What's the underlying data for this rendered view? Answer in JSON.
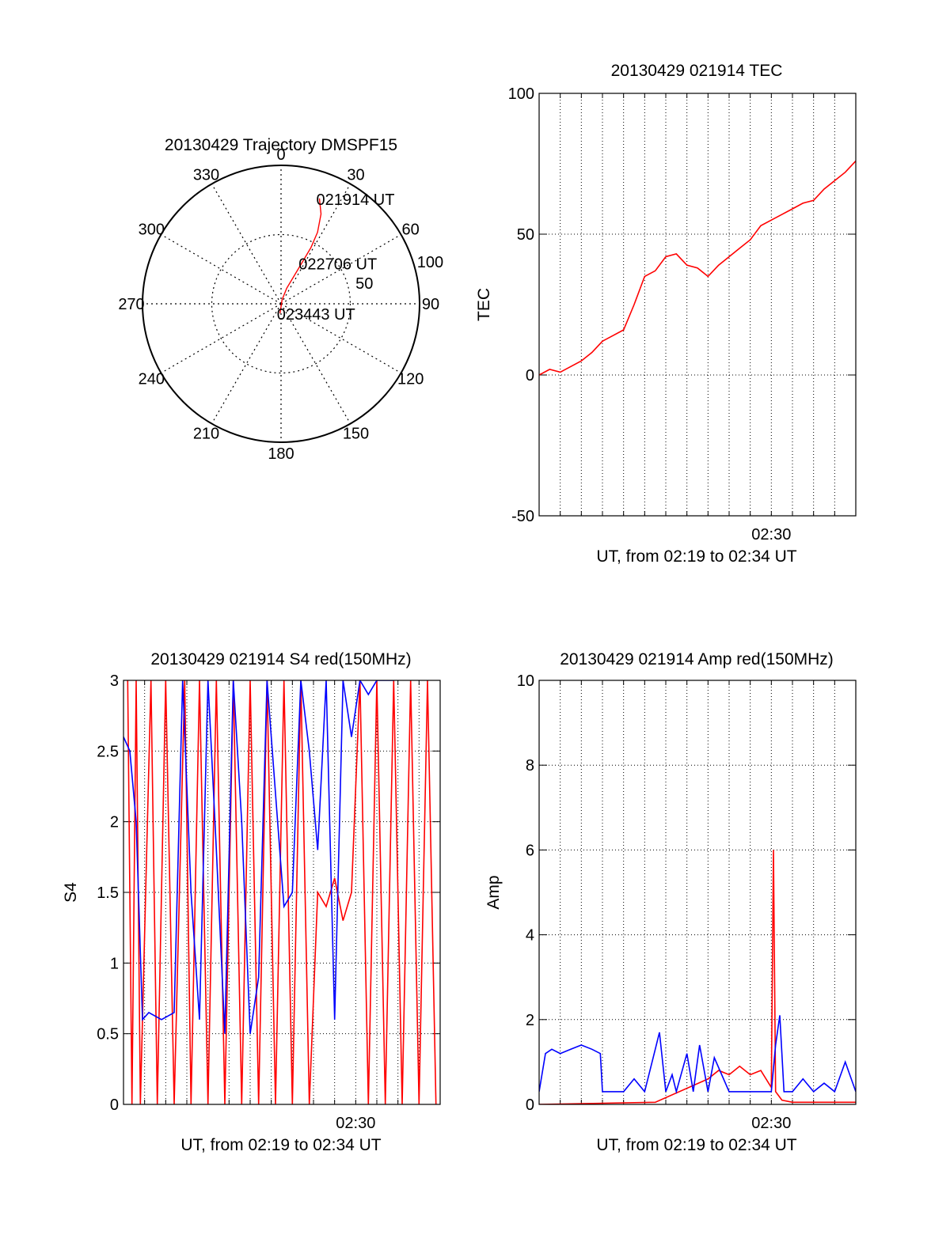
{
  "colors": {
    "red": "#ff0000",
    "blue": "#0000ff",
    "axis": "#000000",
    "grid": "#000000"
  },
  "chart_data": [
    {
      "id": "trajectory",
      "type": "polar",
      "title": "20130429 Trajectory DMSPF15",
      "angle_labels": [
        "0",
        "30",
        "60",
        "90",
        "120",
        "150",
        "180",
        "210",
        "240",
        "270",
        "300",
        "330"
      ],
      "radial_labels": [
        "50",
        "100"
      ],
      "rlim": [
        0,
        100
      ],
      "grid": true,
      "series": [
        {
          "color": "red",
          "points": [
            [
              20,
              81
            ],
            [
              24,
              71
            ],
            [
              27,
              58
            ],
            [
              28,
              46
            ],
            [
              27,
              33
            ],
            [
              25,
              22
            ],
            [
              20,
              12
            ],
            [
              14,
              3
            ],
            [
              6,
              -7
            ]
          ]
        }
      ],
      "annotations": [
        {
          "text": "021914 UT",
          "at_point": 0
        },
        {
          "text": "022706 UT",
          "at_point": 4
        },
        {
          "text": "023443 UT",
          "at_point": 8
        }
      ]
    },
    {
      "id": "tec",
      "type": "line",
      "title": "20130429 021914 TEC",
      "ylabel": "TEC",
      "xlabel": "UT, from 02:19 to 02:34 UT",
      "xtick_labels": [
        {
          "x": 11,
          "label": "02:30"
        }
      ],
      "xlim": [
        0,
        15
      ],
      "ylim": [
        -50,
        100
      ],
      "yticks": [
        -50,
        0,
        50,
        100
      ],
      "grid": true,
      "series": [
        {
          "color": "red",
          "x": [
            0,
            0.5,
            1,
            1.5,
            2,
            2.5,
            3,
            3.5,
            4,
            4.5,
            5,
            5.5,
            6,
            6.5,
            7,
            7.5,
            8,
            8.5,
            9,
            9.5,
            10,
            10.5,
            11,
            11.5,
            12,
            12.5,
            13,
            13.5,
            14,
            14.5,
            15
          ],
          "y": [
            0,
            2,
            1,
            3,
            5,
            8,
            12,
            14,
            16,
            25,
            35,
            37,
            42,
            43,
            39,
            38,
            35,
            39,
            42,
            45,
            48,
            53,
            55,
            57,
            59,
            61,
            62,
            66,
            69,
            72,
            76
          ]
        }
      ]
    },
    {
      "id": "s4",
      "type": "line",
      "title": "20130429 021914 S4 red(150MHz)",
      "ylabel": "S4",
      "xlabel": "UT, from 02:19 to 02:34 UT",
      "xtick_labels": [
        {
          "x": 11,
          "label": "02:30"
        }
      ],
      "xlim": [
        0,
        15
      ],
      "ylim": [
        0,
        3
      ],
      "yticks": [
        0,
        0.5,
        1,
        1.5,
        2,
        2.5,
        3
      ],
      "ytick_labels": [
        "0",
        "0.5",
        "1",
        "1.5",
        "2",
        "2.5",
        "3"
      ],
      "grid": true,
      "series": [
        {
          "color": "red",
          "x": [
            0.2,
            0.4,
            0.6,
            0.8,
            1.3,
            1.6,
            2.0,
            2.4,
            2.9,
            3.2,
            3.6,
            4.0,
            4.4,
            4.8,
            5.2,
            5.6,
            6.0,
            6.4,
            6.8,
            7.2,
            7.6,
            8.0,
            8.4,
            8.8,
            9.2,
            9.6,
            10.0,
            10.4,
            10.8,
            11.2,
            11.6,
            12.0,
            12.4,
            12.8,
            13.2,
            13.6,
            14.0,
            14.4,
            14.8
          ],
          "y": [
            3,
            0,
            3,
            0,
            3,
            0,
            3,
            0,
            3,
            0,
            3,
            0,
            3,
            0,
            3,
            0,
            3,
            0,
            3,
            0,
            3,
            0,
            3,
            0,
            1.5,
            1.4,
            1.6,
            1.3,
            1.5,
            3,
            0,
            3,
            0,
            3,
            0,
            3,
            0,
            3,
            0
          ]
        },
        {
          "color": "blue",
          "x": [
            0,
            0.3,
            0.6,
            0.9,
            1.2,
            1.8,
            2.4,
            2.8,
            3.2,
            3.6,
            4.0,
            4.4,
            4.8,
            5.2,
            5.6,
            6.0,
            6.4,
            6.8,
            7.2,
            7.6,
            8.0,
            8.4,
            8.8,
            9.2,
            9.6,
            10.0,
            10.4,
            10.8,
            11.2,
            11.6,
            12.0,
            12.4,
            12.8
          ],
          "y": [
            2.6,
            2.5,
            2.0,
            0.6,
            0.65,
            0.6,
            0.65,
            3,
            1.5,
            0.6,
            3,
            1.8,
            0.5,
            3,
            2.0,
            0.5,
            0.9,
            3,
            2.2,
            1.4,
            1.5,
            3,
            2.5,
            1.8,
            3,
            0.6,
            3,
            2.6,
            3,
            2.9,
            3,
            3,
            3
          ]
        }
      ]
    },
    {
      "id": "amp",
      "type": "line",
      "title": "20130429 021914 Amp red(150MHz)",
      "ylabel": "Amp",
      "xlabel": "UT, from 02:19 to 02:34 UT",
      "xtick_labels": [
        {
          "x": 11,
          "label": "02:30"
        }
      ],
      "xlim": [
        0,
        15
      ],
      "ylim": [
        0,
        10
      ],
      "yticks": [
        0,
        2,
        4,
        6,
        8,
        10
      ],
      "grid": true,
      "series": [
        {
          "color": "red",
          "x": [
            0,
            5.5,
            8,
            8.5,
            9,
            9.5,
            10,
            10.5,
            11,
            11.1,
            11.2,
            11.5,
            12,
            13,
            15
          ],
          "y": [
            0,
            0.05,
            0.6,
            0.8,
            0.7,
            0.9,
            0.7,
            0.8,
            0.4,
            6,
            0.3,
            0.1,
            0.05,
            0.05,
            0.05
          ]
        },
        {
          "color": "blue",
          "x": [
            0,
            0.3,
            0.6,
            1,
            1.5,
            2,
            2.5,
            2.9,
            3,
            4,
            4.5,
            5,
            5.5,
            5.7,
            6,
            6.3,
            6.5,
            7,
            7.3,
            7.6,
            8,
            8.3,
            9,
            10,
            10.5,
            11,
            11.2,
            11.4,
            11.6,
            12,
            12.5,
            13,
            13.5,
            14,
            14.5,
            15
          ],
          "y": [
            0.3,
            1.2,
            1.3,
            1.2,
            1.3,
            1.4,
            1.3,
            1.2,
            0.3,
            0.3,
            0.6,
            0.3,
            1.3,
            1.7,
            0.3,
            0.7,
            0.3,
            1.2,
            0.3,
            1.4,
            0.3,
            1.1,
            0.3,
            0.3,
            0.3,
            0.3,
            1.4,
            2.1,
            0.3,
            0.3,
            0.6,
            0.3,
            0.5,
            0.3,
            1.0,
            0.3
          ]
        }
      ]
    }
  ]
}
